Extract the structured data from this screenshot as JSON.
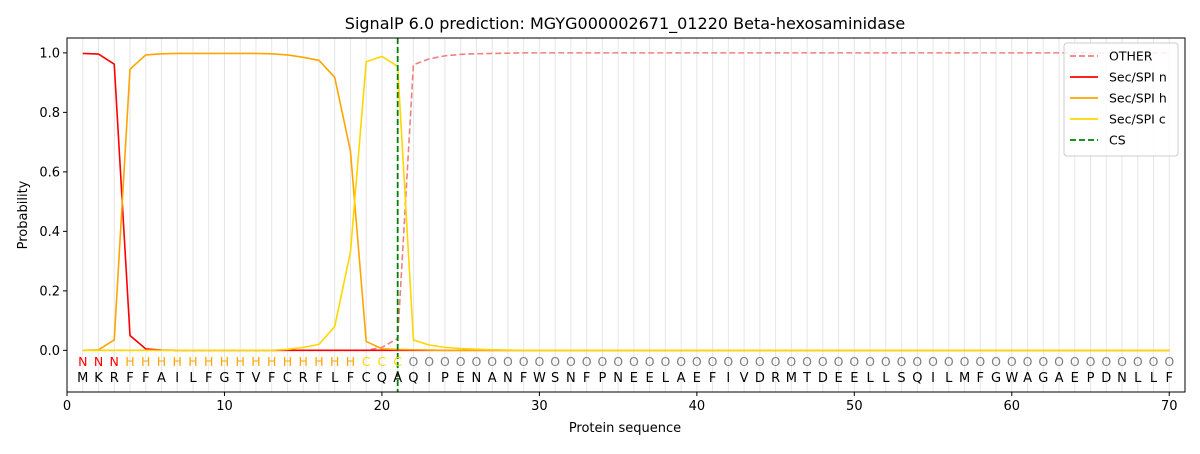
{
  "chart_data": {
    "type": "line",
    "title": "SignalP 6.0 prediction: MGYG000002671_01220 Beta-hexosaminidase",
    "xlabel": "Protein sequence",
    "ylabel": "Probability",
    "xlim": [
      0,
      71
    ],
    "ylim": [
      -0.14,
      1.05
    ],
    "x_ticks": [
      0,
      10,
      20,
      30,
      40,
      50,
      60,
      70
    ],
    "y_ticks": [
      0.0,
      0.2,
      0.4,
      0.6,
      0.8,
      1.0
    ],
    "grid": "vertical lines at each residue",
    "legend_position": "upper-right",
    "sequence": [
      "M",
      "K",
      "R",
      "F",
      "F",
      "A",
      "I",
      "L",
      "F",
      "G",
      "T",
      "V",
      "F",
      "C",
      "R",
      "F",
      "L",
      "F",
      "C",
      "Q",
      "A",
      "Q",
      "I",
      "P",
      "E",
      "N",
      "A",
      "N",
      "F",
      "W",
      "S",
      "N",
      "F",
      "P",
      "N",
      "E",
      "E",
      "L",
      "A",
      "E",
      "F",
      "I",
      "V",
      "D",
      "R",
      "M",
      "T",
      "D",
      "E",
      "E",
      "L",
      "L",
      "S",
      "Q",
      "I",
      "L",
      "M",
      "F",
      "G",
      "W",
      "A",
      "G",
      "A",
      "E",
      "P",
      "D",
      "N",
      "L",
      "L",
      "F"
    ],
    "region_labels": [
      "N",
      "N",
      "N",
      "H",
      "H",
      "H",
      "H",
      "H",
      "H",
      "H",
      "H",
      "H",
      "H",
      "H",
      "H",
      "H",
      "H",
      "H",
      "C",
      "C",
      "C",
      "O",
      "O",
      "O",
      "O",
      "O",
      "O",
      "O",
      "O",
      "O",
      "O",
      "O",
      "O",
      "O",
      "O",
      "O",
      "O",
      "O",
      "O",
      "O",
      "O",
      "O",
      "O",
      "O",
      "O",
      "O",
      "O",
      "O",
      "O",
      "O",
      "O",
      "O",
      "O",
      "O",
      "O",
      "O",
      "O",
      "O",
      "O",
      "O",
      "O",
      "O",
      "O",
      "O",
      "O",
      "O",
      "O",
      "O",
      "O",
      "O"
    ],
    "region_colors": {
      "N": "#ff0000",
      "H": "#ffa500",
      "C": "#ffd700",
      "O": "#808080"
    },
    "cleavage_site": 21,
    "series": [
      {
        "name": "OTHER",
        "color": "#f08080",
        "dash": true,
        "values": [
          0.0,
          0.0,
          0.0,
          0.0,
          0.0,
          0.0,
          0.0,
          0.0,
          0.0,
          0.0,
          0.0,
          0.0,
          0.0,
          0.0,
          0.0,
          0.0,
          0.0,
          0.0,
          0.0,
          0.01,
          0.04,
          0.96,
          0.98,
          0.99,
          0.995,
          0.997,
          0.998,
          0.999,
          1.0,
          1.0,
          1.0,
          1.0,
          1.0,
          1.0,
          1.0,
          1.0,
          1.0,
          1.0,
          1.0,
          1.0,
          1.0,
          1.0,
          1.0,
          1.0,
          1.0,
          1.0,
          1.0,
          1.0,
          1.0,
          1.0,
          1.0,
          1.0,
          1.0,
          1.0,
          1.0,
          1.0,
          1.0,
          1.0,
          1.0,
          1.0,
          1.0,
          1.0,
          1.0,
          1.0,
          1.0,
          1.0,
          1.0,
          1.0,
          1.0,
          1.0
        ]
      },
      {
        "name": "Sec/SPI n",
        "color": "#ff0000",
        "dash": false,
        "values": [
          0.998,
          0.996,
          0.962,
          0.05,
          0.005,
          0.001,
          0.0,
          0.0,
          0.0,
          0.0,
          0.0,
          0.0,
          0.0,
          0.0,
          0.0,
          0.0,
          0.0,
          0.0,
          0.0,
          0.0,
          0.0,
          0.0,
          0.0,
          0.0,
          0.0,
          0.0,
          0.0,
          0.0,
          0.0,
          0.0,
          0.0,
          0.0,
          0.0,
          0.0,
          0.0,
          0.0,
          0.0,
          0.0,
          0.0,
          0.0,
          0.0,
          0.0,
          0.0,
          0.0,
          0.0,
          0.0,
          0.0,
          0.0,
          0.0,
          0.0,
          0.0,
          0.0,
          0.0,
          0.0,
          0.0,
          0.0,
          0.0,
          0.0,
          0.0,
          0.0,
          0.0,
          0.0,
          0.0,
          0.0,
          0.0,
          0.0,
          0.0,
          0.0,
          0.0,
          0.0
        ]
      },
      {
        "name": "Sec/SPI h",
        "color": "#ffa500",
        "dash": false,
        "values": [
          0.0,
          0.002,
          0.035,
          0.945,
          0.993,
          0.997,
          0.998,
          0.998,
          0.998,
          0.998,
          0.998,
          0.998,
          0.997,
          0.993,
          0.985,
          0.975,
          0.918,
          0.67,
          0.03,
          0.005,
          0.003,
          0.002,
          0.001,
          0.0,
          0.0,
          0.0,
          0.0,
          0.0,
          0.0,
          0.0,
          0.0,
          0.0,
          0.0,
          0.0,
          0.0,
          0.0,
          0.0,
          0.0,
          0.0,
          0.0,
          0.0,
          0.0,
          0.0,
          0.0,
          0.0,
          0.0,
          0.0,
          0.0,
          0.0,
          0.0,
          0.0,
          0.0,
          0.0,
          0.0,
          0.0,
          0.0,
          0.0,
          0.0,
          0.0,
          0.0,
          0.0,
          0.0,
          0.0,
          0.0,
          0.0,
          0.0,
          0.0,
          0.0,
          0.0,
          0.0
        ]
      },
      {
        "name": "Sec/SPI c",
        "color": "#ffd700",
        "dash": false,
        "values": [
          0.0,
          0.0,
          0.0,
          0.0,
          0.0,
          0.0,
          0.0,
          0.0,
          0.0,
          0.0,
          0.0,
          0.0,
          0.0,
          0.003,
          0.01,
          0.02,
          0.08,
          0.33,
          0.97,
          0.988,
          0.955,
          0.035,
          0.018,
          0.01,
          0.006,
          0.004,
          0.002,
          0.001,
          0.0,
          0.0,
          0.0,
          0.0,
          0.0,
          0.0,
          0.0,
          0.0,
          0.0,
          0.0,
          0.0,
          0.0,
          0.0,
          0.0,
          0.0,
          0.0,
          0.0,
          0.0,
          0.0,
          0.0,
          0.0,
          0.0,
          0.0,
          0.0,
          0.0,
          0.0,
          0.0,
          0.0,
          0.0,
          0.0,
          0.0,
          0.0,
          0.0,
          0.0,
          0.0,
          0.0,
          0.0,
          0.0,
          0.0,
          0.0,
          0.0,
          0.0
        ]
      },
      {
        "name": "CS",
        "color": "#008000",
        "dash": true,
        "kind": "vline"
      }
    ]
  }
}
